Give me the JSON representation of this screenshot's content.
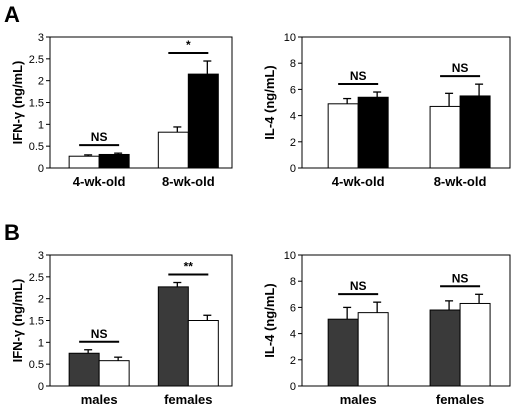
{
  "figure": {
    "panels": [
      {
        "letter": "A"
      },
      {
        "letter": "B"
      }
    ]
  },
  "colors": {
    "white": "#ffffff",
    "black": "#000000",
    "dark": "#3a3a3a"
  },
  "chart_data": [
    {
      "type": "bar",
      "panel": "A",
      "categories": [
        "4-wk-old",
        "8-wk-old"
      ],
      "ylabel": "IFN-γ (ng/mL)",
      "ylim": [
        0,
        3
      ],
      "yticks": [
        "0",
        "0.5",
        "1",
        "1.5",
        "2",
        "2.5",
        "3"
      ],
      "series": [
        {
          "fill": "#ffffff",
          "values": [
            0.27,
            0.82
          ],
          "errors": [
            0.03,
            0.12
          ]
        },
        {
          "fill": "#000000",
          "values": [
            0.31,
            2.15
          ],
          "errors": [
            0.03,
            0.3
          ]
        }
      ],
      "significance": [
        "NS",
        "*"
      ]
    },
    {
      "type": "bar",
      "panel": "A",
      "categories": [
        "4-wk-old",
        "8-wk-old"
      ],
      "ylabel": "IL-4 (ng/mL)",
      "ylim": [
        0,
        10
      ],
      "yticks": [
        "0",
        "2",
        "4",
        "6",
        "8",
        "10"
      ],
      "series": [
        {
          "fill": "#ffffff",
          "values": [
            4.9,
            4.7
          ],
          "errors": [
            0.4,
            1.0
          ]
        },
        {
          "fill": "#000000",
          "values": [
            5.4,
            5.5
          ],
          "errors": [
            0.4,
            0.9
          ]
        }
      ],
      "significance": [
        "NS",
        "NS"
      ]
    },
    {
      "type": "bar",
      "panel": "B",
      "categories": [
        "males",
        "females"
      ],
      "ylabel": "IFN-γ (ng/mL)",
      "ylim": [
        0,
        3
      ],
      "yticks": [
        "0",
        "0.5",
        "1",
        "1.5",
        "2",
        "2.5",
        "3"
      ],
      "series": [
        {
          "fill": "#3a3a3a",
          "values": [
            0.75,
            2.27
          ],
          "errors": [
            0.08,
            0.1
          ]
        },
        {
          "fill": "#ffffff",
          "values": [
            0.58,
            1.5
          ],
          "errors": [
            0.08,
            0.12
          ]
        }
      ],
      "significance": [
        "NS",
        "**"
      ]
    },
    {
      "type": "bar",
      "panel": "B",
      "categories": [
        "males",
        "females"
      ],
      "ylabel": "IL-4 (ng/mL)",
      "ylim": [
        0,
        10
      ],
      "yticks": [
        "0",
        "2",
        "4",
        "6",
        "8",
        "10"
      ],
      "series": [
        {
          "fill": "#3a3a3a",
          "values": [
            5.1,
            5.8
          ],
          "errors": [
            0.9,
            0.7
          ]
        },
        {
          "fill": "#ffffff",
          "values": [
            5.6,
            6.3
          ],
          "errors": [
            0.8,
            0.7
          ]
        }
      ],
      "significance": [
        "NS",
        "NS"
      ]
    }
  ]
}
